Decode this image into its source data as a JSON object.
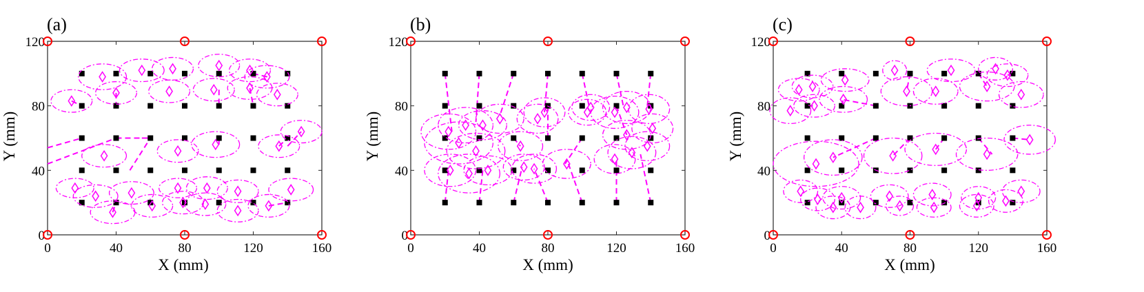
{
  "colors": {
    "estimate": "#ff00ff",
    "anchor": "#ff0000",
    "true_point": "#000000"
  },
  "chart_data": [
    {
      "type": "scatter",
      "title": "(a)",
      "xlabel": "X (mm)",
      "ylabel": "Y (mm)",
      "xlim": [
        0,
        160
      ],
      "ylim": [
        0,
        120
      ],
      "xticks": [
        "0",
        "40",
        "80",
        "120",
        "160"
      ],
      "yticks": [
        "0",
        "40",
        "80",
        "120"
      ],
      "anchors": [
        [
          0,
          0
        ],
        [
          80,
          0
        ],
        [
          160,
          0
        ],
        [
          0,
          120
        ],
        [
          80,
          120
        ],
        [
          160,
          120
        ]
      ],
      "estimates": [
        [
          14,
          83,
          12,
          7
        ],
        [
          32,
          98,
          14,
          8
        ],
        [
          55,
          102,
          13,
          7
        ],
        [
          73,
          103,
          12,
          7
        ],
        [
          100,
          105,
          12,
          7
        ],
        [
          118,
          102,
          12,
          7
        ],
        [
          40,
          88,
          12,
          7
        ],
        [
          71,
          89,
          12,
          7
        ],
        [
          97,
          90,
          12,
          7
        ],
        [
          118,
          91,
          13,
          7
        ],
        [
          128,
          98,
          13,
          7
        ],
        [
          134,
          87,
          12,
          7
        ],
        [
          33,
          49,
          13,
          7
        ],
        [
          76,
          52,
          12,
          7
        ],
        [
          98,
          56,
          14,
          8
        ],
        [
          135,
          55,
          12,
          7
        ],
        [
          148,
          64,
          12,
          7
        ],
        [
          16,
          29,
          11,
          6
        ],
        [
          28,
          24,
          13,
          7
        ],
        [
          38,
          14,
          13,
          7
        ],
        [
          49,
          26,
          13,
          7
        ],
        [
          61,
          18,
          12,
          7
        ],
        [
          76,
          29,
          11,
          6
        ],
        [
          79,
          20,
          12,
          7
        ],
        [
          93,
          29,
          12,
          7
        ],
        [
          92,
          19,
          12,
          7
        ],
        [
          111,
          27,
          12,
          7
        ],
        [
          111,
          15,
          12,
          7
        ],
        [
          129,
          18,
          12,
          7
        ],
        [
          142,
          28,
          13,
          7
        ]
      ],
      "links": [
        [
          [
            14,
            83
          ],
          [
            20,
            80
          ]
        ],
        [
          [
            0,
            54
          ],
          [
            20,
            60
          ]
        ],
        [
          [
            0,
            44
          ],
          [
            40,
            60
          ]
        ],
        [
          [
            40,
            88
          ],
          [
            40,
            80
          ]
        ],
        [
          [
            40,
            60
          ],
          [
            60,
            60
          ]
        ],
        [
          [
            135,
            55
          ],
          [
            140,
            60
          ]
        ],
        [
          [
            140,
            55
          ],
          [
            148,
            64
          ]
        ],
        [
          [
            100,
            56
          ],
          [
            100,
            60
          ]
        ],
        [
          [
            100,
            90
          ],
          [
            100,
            80
          ]
        ],
        [
          [
            128,
            98
          ],
          [
            120,
            100
          ]
        ],
        [
          [
            118,
            91
          ],
          [
            120,
            80
          ]
        ],
        [
          [
            55,
            60
          ],
          [
            60,
            60
          ]
        ],
        [
          [
            48,
            40
          ],
          [
            60,
            60
          ]
        ],
        [
          [
            38,
            14
          ],
          [
            40,
            20
          ]
        ],
        [
          [
            129,
            18
          ],
          [
            140,
            20
          ]
        ]
      ]
    },
    {
      "type": "scatter",
      "title": "(b)",
      "xlabel": "X (mm)",
      "ylabel": "Y (mm)",
      "xlim": [
        0,
        160
      ],
      "ylim": [
        0,
        120
      ],
      "xticks": [
        "0",
        "40",
        "80",
        "120",
        "160"
      ],
      "yticks": [
        "0",
        "40",
        "80",
        "120"
      ],
      "anchors": [
        [
          0,
          0
        ],
        [
          80,
          0
        ],
        [
          160,
          0
        ],
        [
          0,
          120
        ],
        [
          80,
          120
        ],
        [
          160,
          120
        ]
      ],
      "estimates": [
        [
          22,
          64,
          16,
          11
        ],
        [
          28,
          57,
          20,
          13
        ],
        [
          32,
          68,
          16,
          11
        ],
        [
          38,
          52,
          17,
          11
        ],
        [
          23,
          40,
          15,
          10
        ],
        [
          34,
          38,
          18,
          12
        ],
        [
          42,
          68,
          14,
          9
        ],
        [
          45,
          40,
          14,
          9
        ],
        [
          52,
          72,
          14,
          9
        ],
        [
          64,
          55,
          13,
          9
        ],
        [
          72,
          41,
          13,
          9
        ],
        [
          66,
          42,
          12,
          8
        ],
        [
          74,
          72,
          12,
          9
        ],
        [
          78,
          76,
          12,
          9
        ],
        [
          91,
          44,
          14,
          9
        ],
        [
          103,
          76,
          11,
          8
        ],
        [
          105,
          79,
          11,
          8
        ],
        [
          119,
          47,
          12,
          9
        ],
        [
          119,
          76,
          14,
          10
        ],
        [
          126,
          62,
          14,
          9
        ],
        [
          126,
          79,
          14,
          10
        ],
        [
          129,
          51,
          14,
          10
        ],
        [
          138,
          55,
          13,
          9
        ],
        [
          139,
          78,
          12,
          9
        ],
        [
          141,
          66,
          12,
          9
        ]
      ],
      "links": [
        [
          [
            20,
            100
          ],
          [
            24,
            64
          ]
        ],
        [
          [
            40,
            100
          ],
          [
            38,
            70
          ]
        ],
        [
          [
            60,
            100
          ],
          [
            52,
            74
          ]
        ],
        [
          [
            80,
            100
          ],
          [
            78,
            76
          ]
        ],
        [
          [
            100,
            100
          ],
          [
            104,
            80
          ]
        ],
        [
          [
            120,
            100
          ],
          [
            124,
            80
          ]
        ],
        [
          [
            140,
            100
          ],
          [
            138,
            80
          ]
        ],
        [
          [
            20,
            20
          ],
          [
            22,
            40
          ]
        ],
        [
          [
            40,
            20
          ],
          [
            42,
            40
          ]
        ],
        [
          [
            60,
            20
          ],
          [
            65,
            42
          ]
        ],
        [
          [
            80,
            20
          ],
          [
            72,
            41
          ]
        ],
        [
          [
            100,
            20
          ],
          [
            92,
            44
          ]
        ],
        [
          [
            120,
            20
          ],
          [
            120,
            47
          ]
        ],
        [
          [
            140,
            20
          ],
          [
            134,
            50
          ]
        ],
        [
          [
            60,
            60
          ],
          [
            64,
            55
          ]
        ],
        [
          [
            100,
            60
          ],
          [
            90,
            44
          ]
        ],
        [
          [
            80,
            80
          ],
          [
            80,
            60
          ]
        ],
        [
          [
            120,
            80
          ],
          [
            126,
            62
          ]
        ]
      ]
    },
    {
      "type": "scatter",
      "title": "(c)",
      "xlabel": "X (mm)",
      "ylabel": "Y (mm)",
      "xlim": [
        0,
        160
      ],
      "ylim": [
        0,
        120
      ],
      "xticks": [
        "0",
        "40",
        "80",
        "120",
        "160"
      ],
      "yticks": [
        "0",
        "40",
        "80",
        "120"
      ],
      "anchors": [
        [
          0,
          0
        ],
        [
          80,
          0
        ],
        [
          160,
          0
        ],
        [
          0,
          120
        ],
        [
          80,
          120
        ],
        [
          160,
          120
        ]
      ],
      "estimates": [
        [
          15,
          90,
          12,
          7
        ],
        [
          23,
          92,
          12,
          7
        ],
        [
          10,
          77,
          12,
          8
        ],
        [
          24,
          80,
          12,
          7
        ],
        [
          42,
          96,
          14,
          7
        ],
        [
          71,
          102,
          7,
          6
        ],
        [
          104,
          102,
          14,
          7
        ],
        [
          130,
          103,
          10,
          7
        ],
        [
          137,
          99,
          12,
          7
        ],
        [
          78,
          89,
          15,
          9
        ],
        [
          95,
          89,
          13,
          8
        ],
        [
          125,
          92,
          16,
          9
        ],
        [
          145,
          87,
          13,
          8
        ],
        [
          41,
          84,
          14,
          8
        ],
        [
          25,
          44,
          25,
          14
        ],
        [
          35,
          48,
          17,
          11
        ],
        [
          70,
          49,
          17,
          11
        ],
        [
          95,
          53,
          18,
          10
        ],
        [
          125,
          50,
          18,
          10
        ],
        [
          150,
          59,
          15,
          9
        ],
        [
          16,
          27,
          10,
          7
        ],
        [
          26,
          22,
          10,
          7
        ],
        [
          35,
          17,
          10,
          7
        ],
        [
          40,
          23,
          11,
          7
        ],
        [
          51,
          17,
          9,
          7
        ],
        [
          68,
          24,
          11,
          7
        ],
        [
          74,
          18,
          8,
          6
        ],
        [
          93,
          25,
          11,
          7
        ],
        [
          94,
          17,
          10,
          6
        ],
        [
          120,
          23,
          10,
          7
        ],
        [
          119,
          18,
          10,
          7
        ],
        [
          136,
          21,
          10,
          7
        ],
        [
          145,
          27,
          11,
          7
        ]
      ],
      "links": [
        [
          [
            20,
            80
          ],
          [
            24,
            80
          ]
        ],
        [
          [
            40,
            80
          ],
          [
            41,
            84
          ]
        ],
        [
          [
            60,
            80
          ],
          [
            40,
            84
          ]
        ],
        [
          [
            80,
            60
          ],
          [
            70,
            49
          ]
        ],
        [
          [
            100,
            60
          ],
          [
            95,
            53
          ]
        ],
        [
          [
            120,
            60
          ],
          [
            128,
            50
          ]
        ],
        [
          [
            140,
            60
          ],
          [
            150,
            59
          ]
        ],
        [
          [
            60,
            60
          ],
          [
            35,
            48
          ]
        ],
        [
          [
            80,
            100
          ],
          [
            78,
            89
          ]
        ],
        [
          [
            140,
            100
          ],
          [
            137,
            99
          ]
        ],
        [
          [
            120,
            100
          ],
          [
            125,
            92
          ]
        ]
      ]
    }
  ]
}
